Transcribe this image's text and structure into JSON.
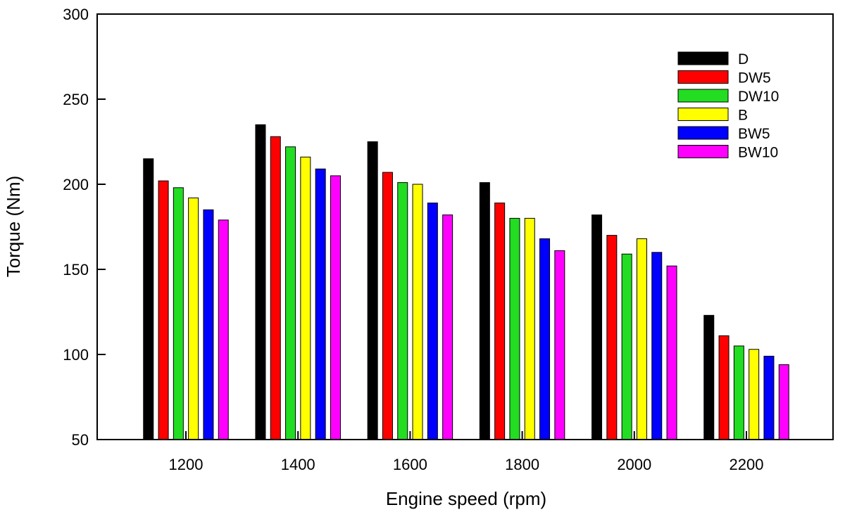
{
  "chart_data": {
    "type": "bar",
    "title": "",
    "xlabel": "Engine speed (rpm)",
    "ylabel": "Torque (Nm)",
    "ylim": [
      50,
      300
    ],
    "yticks": [
      50,
      100,
      150,
      200,
      250,
      300
    ],
    "categories": [
      "1200",
      "1400",
      "1600",
      "1800",
      "2000",
      "2200"
    ],
    "series": [
      {
        "name": "D",
        "color": "#000000",
        "values": [
          215,
          235,
          225,
          201,
          182,
          123
        ]
      },
      {
        "name": "DW5",
        "color": "#ff0000",
        "values": [
          202,
          228,
          207,
          189,
          170,
          111
        ]
      },
      {
        "name": "DW10",
        "color": "#22dd22",
        "values": [
          198,
          222,
          201,
          180,
          159,
          105
        ]
      },
      {
        "name": "B",
        "color": "#ffff00",
        "values": [
          192,
          216,
          200,
          180,
          168,
          103
        ]
      },
      {
        "name": "BW5",
        "color": "#0000ff",
        "values": [
          185,
          209,
          189,
          168,
          160,
          99
        ]
      },
      {
        "name": "BW10",
        "color": "#ff00ff",
        "values": [
          179,
          205,
          182,
          161,
          152,
          94
        ]
      }
    ],
    "legend_position": "top-right",
    "grid": false
  }
}
